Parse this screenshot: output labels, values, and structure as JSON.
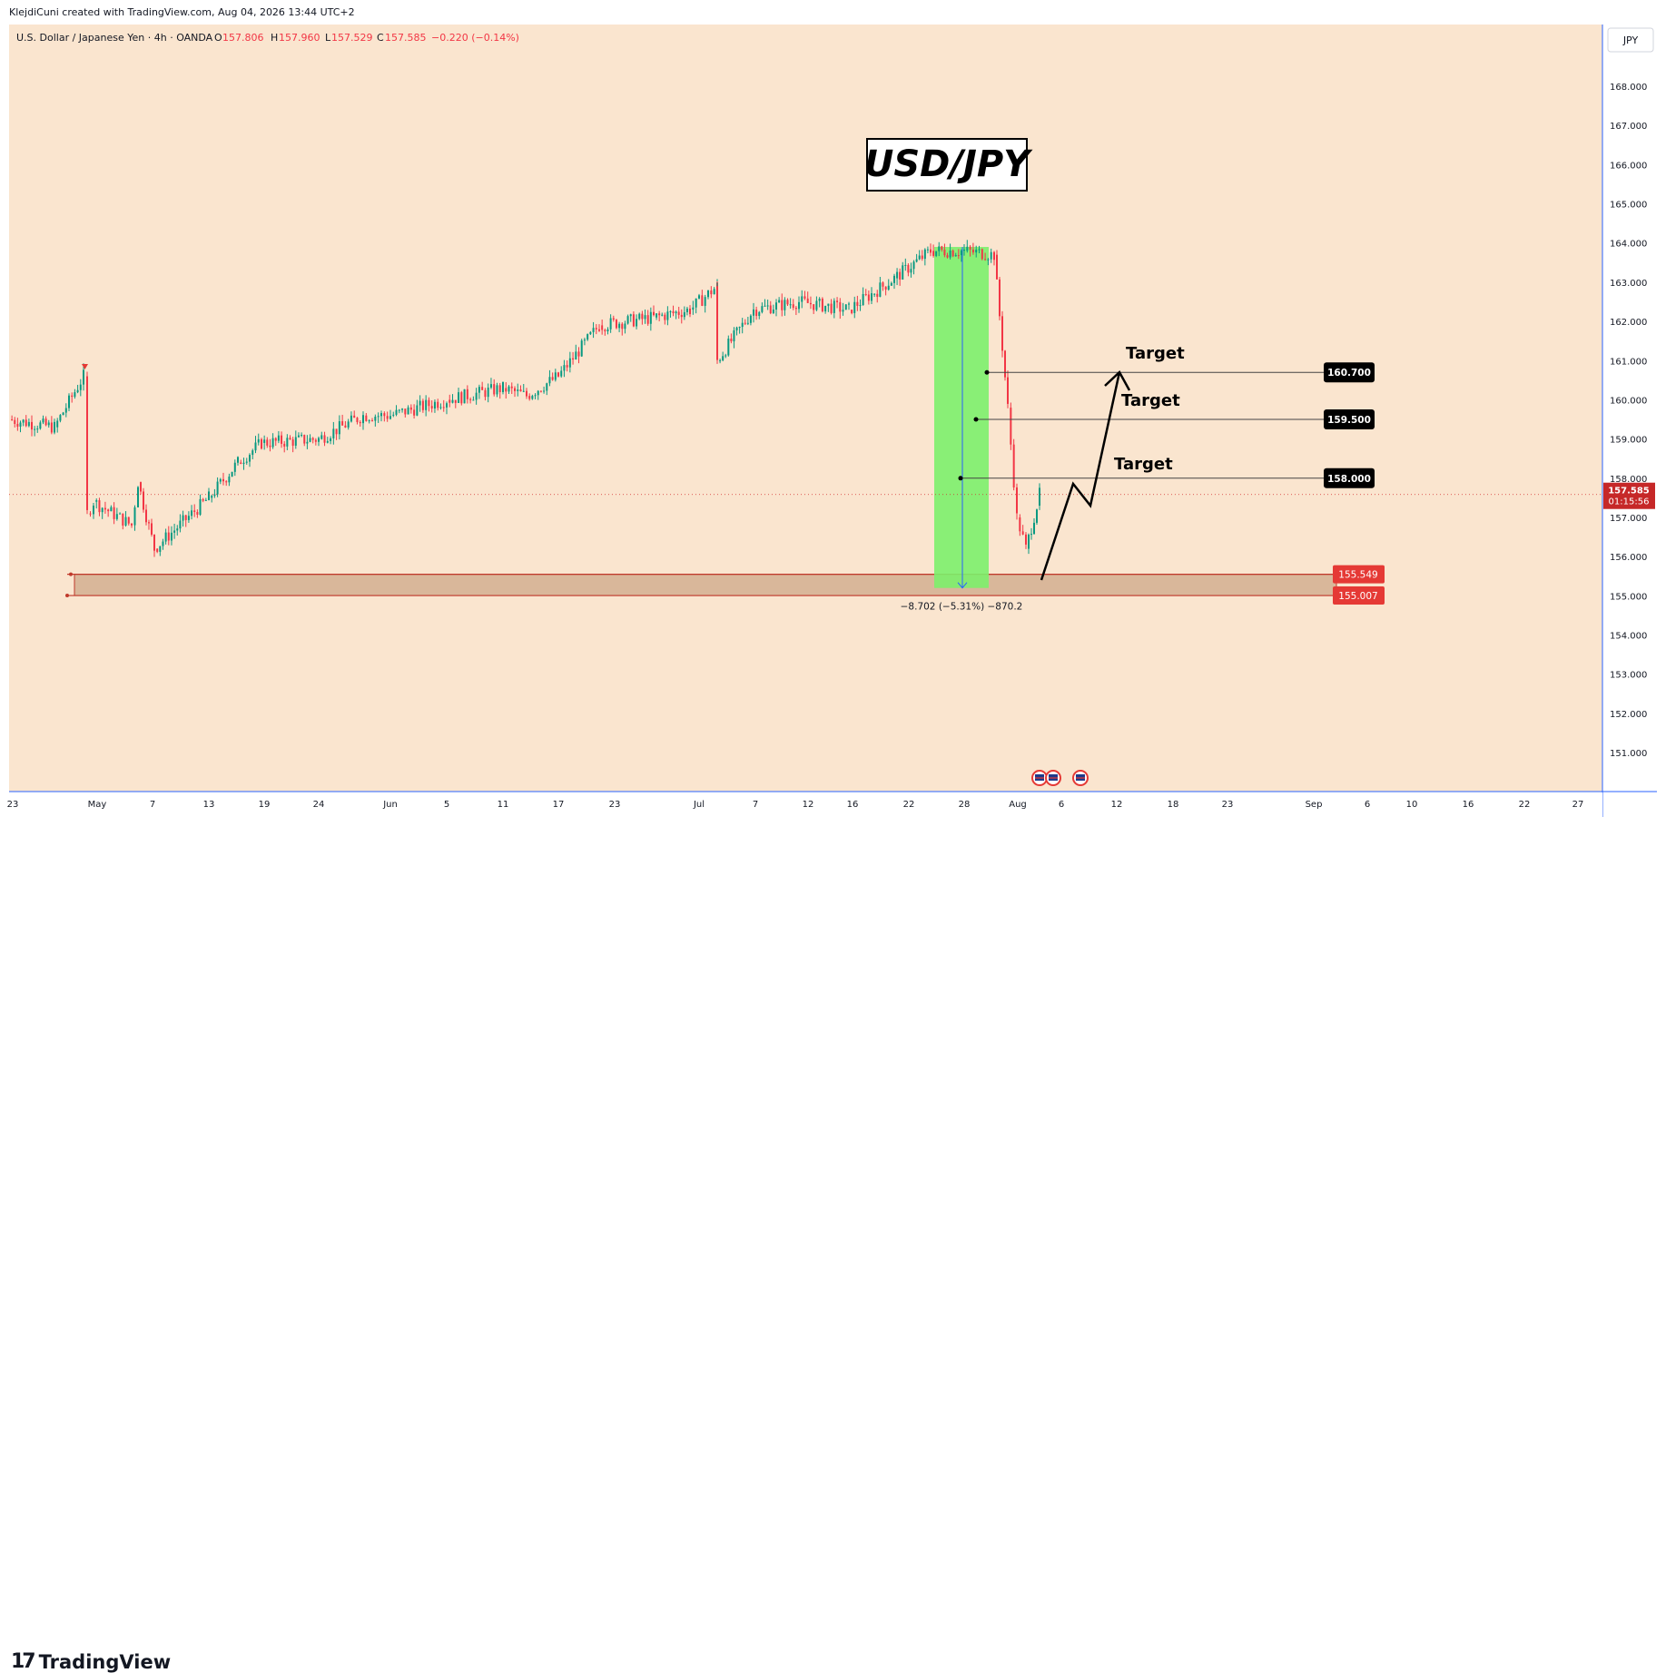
{
  "header": {
    "attribution": "KlejdiCuni created with TradingView.com, Aug 04, 2026 13:44 UTC+2"
  },
  "legend": {
    "symbol": "U.S. Dollar / Japanese Yen · 4h · OANDA",
    "open_label": "O",
    "open": "157.806",
    "high_label": "H",
    "high": "157.960",
    "low_label": "L",
    "low": "157.529",
    "close_label": "C",
    "close": "157.585",
    "change": "−0.220 (−0.14%)"
  },
  "title_box": "USD/JPY",
  "currency_button": "JPY",
  "colors": {
    "background": "#fae5cf",
    "up": "#26a69a",
    "up_fill": "#089981",
    "down": "#f23645",
    "measure_fill": "#7cf06b",
    "zone_fill": "#d9b79a",
    "zone_line": "#c0392b",
    "price_tag": "#d32f2f",
    "target_tag": "#000000",
    "axis_line": "#2962ff"
  },
  "brand": {
    "name": "TradingView",
    "mark": "17"
  },
  "current_price": {
    "value": "157.585",
    "countdown": "01:15:56"
  },
  "measure_label": "−8.702 (−5.31%) −870.2",
  "targets": [
    {
      "label": "Target",
      "price": "158.000"
    },
    {
      "label": "Target",
      "price": "159.500"
    },
    {
      "label": "Target",
      "price": "160.700"
    }
  ],
  "support_zone": {
    "top": "155.549",
    "bottom": "155.007"
  },
  "chart_data": {
    "type": "line",
    "title": "USD/JPY",
    "symbol": "U.S. Dollar / Japanese Yen",
    "timeframe": "4h",
    "source": "OANDA",
    "y_axis_ticks": [
      "151.000",
      "152.000",
      "153.000",
      "154.000",
      "155.000",
      "156.000",
      "157.000",
      "158.000",
      "159.000",
      "160.000",
      "161.000",
      "162.000",
      "163.000",
      "164.000",
      "165.000",
      "166.000",
      "167.000",
      "168.000"
    ],
    "y_range": [
      150.2,
      169.3
    ],
    "x_axis_ticks": [
      "23",
      "May",
      "7",
      "13",
      "19",
      "24",
      "Jun",
      "5",
      "11",
      "17",
      "23",
      "Jul",
      "7",
      "12",
      "16",
      "22",
      "28",
      "Aug",
      "6",
      "12",
      "18",
      "23",
      "Sep",
      "6",
      "10",
      "16",
      "22",
      "27"
    ],
    "x": [
      "Apr 23",
      "Apr 27",
      "Apr 29",
      "Apr 30",
      "May 1",
      "May 5",
      "May 6",
      "May 8",
      "May 12",
      "May 15",
      "May 19",
      "May 24",
      "May 29",
      "Jun 3",
      "Jun 7",
      "Jun 11",
      "Jun 15",
      "Jun 19",
      "Jun 23",
      "Jun 27",
      "Jul 1",
      "Jul 3",
      "Jul 5",
      "Jul 9",
      "Jul 13",
      "Jul 17",
      "Jul 21",
      "Jul 23",
      "Jul 26",
      "Jul 28",
      "Jul 29",
      "Jul 30",
      "Jul 31",
      "Aug 1",
      "Aug 3",
      "Aug 4"
    ],
    "series": [
      {
        "values": [
          159.5,
          159.3,
          160.6,
          157.1,
          157.4,
          156.8,
          157.9,
          156.2,
          157.5,
          158.4,
          158.9,
          159.0,
          159.6,
          159.6,
          160.0,
          160.3,
          160.1,
          160.6,
          161.9,
          162.1,
          162.3,
          162.9,
          161.0,
          162.3,
          162.5,
          162.3,
          162.7,
          163.1,
          163.8,
          163.8,
          163.7,
          159.8,
          157.0,
          156.2,
          157.3,
          157.585
        ]
      }
    ],
    "target_levels": [
      158.0,
      159.5,
      160.7
    ],
    "support_zone": [
      155.007,
      155.549
    ],
    "measured_move": {
      "from": 163.9,
      "to": 155.2,
      "change": -8.702,
      "change_pct": -5.31,
      "ticks": -870.2
    }
  }
}
